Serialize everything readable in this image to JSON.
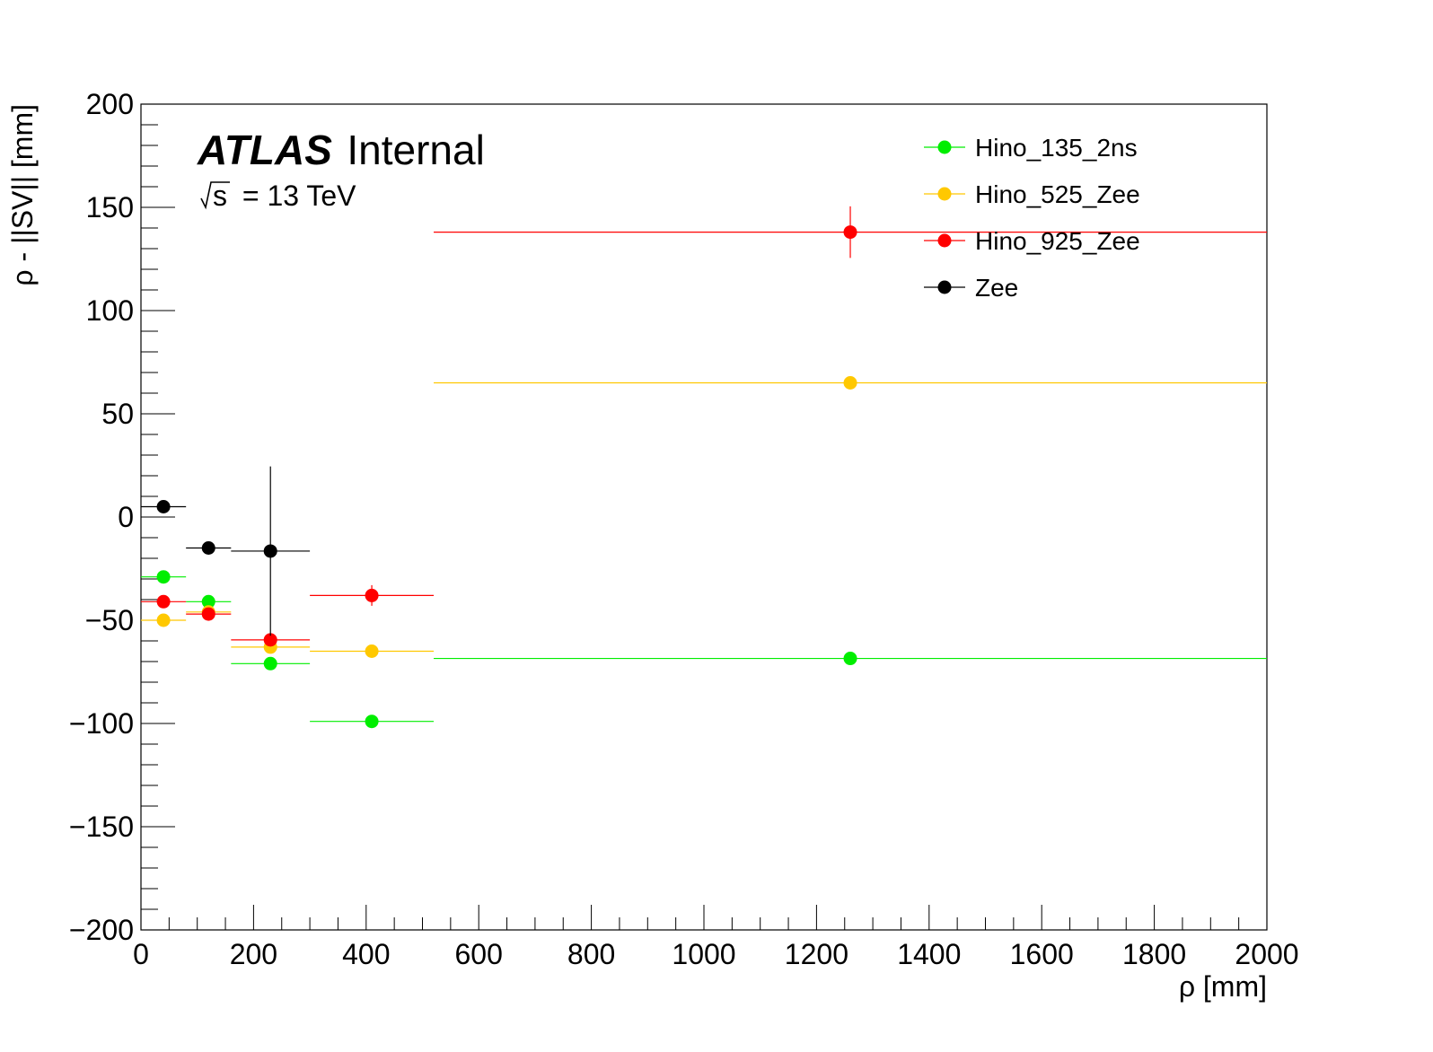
{
  "chart_data": {
    "type": "scatter",
    "title": "",
    "label": {
      "experiment": "ATLAS",
      "status": "Internal",
      "energy_sqrt": "s",
      "energy_value": "= 13 TeV"
    },
    "xlabel": "ρ [mm]",
    "ylabel": "ρ - ||SV|| [mm]",
    "xlim": [
      0,
      2000
    ],
    "ylim": [
      -200,
      200
    ],
    "x_ticks": [
      0,
      200,
      400,
      600,
      800,
      1000,
      1200,
      1400,
      1600,
      1800,
      2000
    ],
    "x_tick_labels": [
      "0",
      "200",
      "400",
      "600",
      "800",
      "1000",
      "1200",
      "1400",
      "1600",
      "1800",
      "2000"
    ],
    "y_ticks": [
      -200,
      -150,
      -100,
      -50,
      0,
      50,
      100,
      150,
      200
    ],
    "y_tick_labels": [
      "−200",
      "−150",
      "−100",
      "−50",
      "0",
      "50",
      "100",
      "150",
      "200"
    ],
    "grid": false,
    "legend_position": "top-right",
    "series": [
      {
        "name": "Hino_135_2ns",
        "color": "#00ee00",
        "points": [
          {
            "x": 40,
            "xerr": 40,
            "y": -29,
            "yerr": 0
          },
          {
            "x": 120,
            "xerr": 40,
            "y": -41,
            "yerr": 0
          },
          {
            "x": 230,
            "xerr": 70,
            "y": -71,
            "yerr": 0
          },
          {
            "x": 410,
            "xerr": 110,
            "y": -99,
            "yerr": 0
          },
          {
            "x": 1260,
            "xerr": 740,
            "y": -68.5,
            "yerr": 0
          }
        ]
      },
      {
        "name": "Hino_525_Zee",
        "color": "#ffc800",
        "points": [
          {
            "x": 40,
            "xerr": 40,
            "y": -50,
            "yerr": 0
          },
          {
            "x": 120,
            "xerr": 40,
            "y": -46,
            "yerr": 0
          },
          {
            "x": 230,
            "xerr": 70,
            "y": -63,
            "yerr": 0
          },
          {
            "x": 410,
            "xerr": 110,
            "y": -65,
            "yerr": 0
          },
          {
            "x": 1260,
            "xerr": 740,
            "y": 65,
            "yerr": 0
          }
        ]
      },
      {
        "name": "Hino_925_Zee",
        "color": "#ff0000",
        "points": [
          {
            "x": 40,
            "xerr": 40,
            "y": -41,
            "yerr": 0
          },
          {
            "x": 120,
            "xerr": 40,
            "y": -47,
            "yerr": 0
          },
          {
            "x": 230,
            "xerr": 70,
            "y": -59.5,
            "yerr": 0
          },
          {
            "x": 410,
            "xerr": 110,
            "y": -38,
            "yerr": 5
          },
          {
            "x": 1260,
            "xerr": 740,
            "y": 138,
            "yerr": 12.5
          }
        ]
      },
      {
        "name": "Zee",
        "color": "#000000",
        "points": [
          {
            "x": 40,
            "xerr": 40,
            "y": 5,
            "yerr": 0
          },
          {
            "x": 120,
            "xerr": 40,
            "y": -15,
            "yerr": 0
          },
          {
            "x": 230,
            "xerr": 70,
            "y": -16.5,
            "yerr": 41
          }
        ]
      }
    ]
  }
}
